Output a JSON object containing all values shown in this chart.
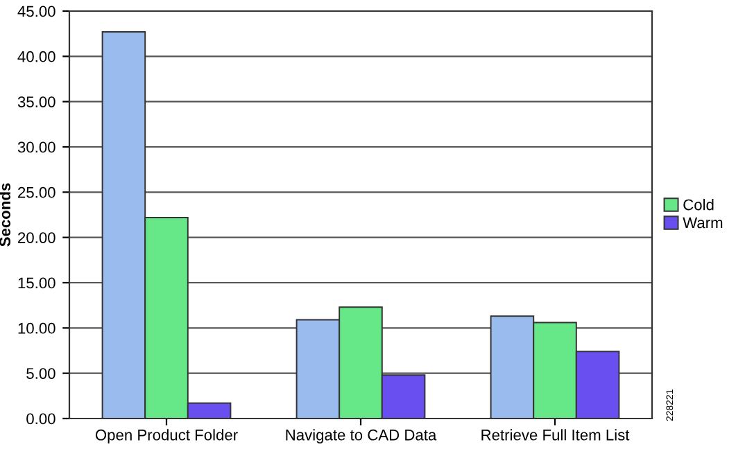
{
  "chart_data": {
    "type": "bar",
    "ylabel": "Seconds",
    "categories": [
      "Open Product Folder",
      "Navigate to CAD Data",
      "Retrieve Full Item List"
    ],
    "series": [
      {
        "color": "#99bbee",
        "values": [
          42.7,
          10.9,
          11.3
        ]
      },
      {
        "name": "Cold",
        "color": "#66e888",
        "values": [
          22.2,
          12.3,
          10.6
        ]
      },
      {
        "name": "Warm",
        "color": "#6a4ff0",
        "values": [
          1.7,
          4.8,
          7.4
        ]
      }
    ],
    "ylim": [
      0,
      45
    ],
    "yticks": [
      {
        "value": 0,
        "label": "0.00"
      },
      {
        "value": 5,
        "label": "5.00"
      },
      {
        "value": 10,
        "label": "10.00"
      },
      {
        "value": 15,
        "label": "15.00"
      },
      {
        "value": 20,
        "label": "20.00"
      },
      {
        "value": 25,
        "label": "25.00"
      },
      {
        "value": 30,
        "label": "30.00"
      },
      {
        "value": 35,
        "label": "35.00"
      },
      {
        "value": 40,
        "label": "40.00"
      },
      {
        "value": 45,
        "label": "45.00"
      }
    ],
    "grid": "y",
    "legend": "right",
    "annotations": [
      "228221"
    ]
  }
}
